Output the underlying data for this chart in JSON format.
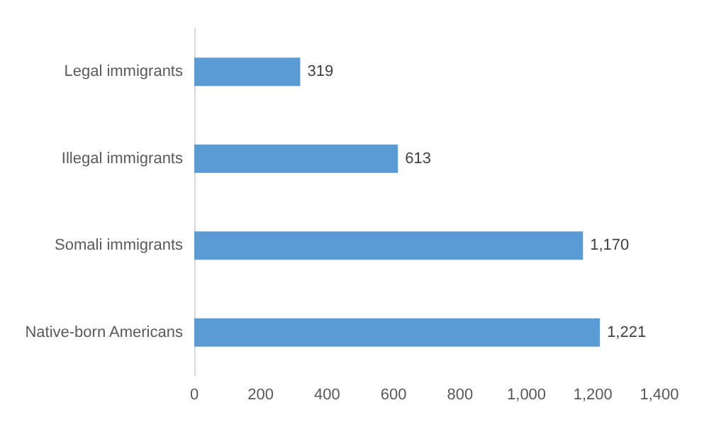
{
  "chart_data": {
    "type": "bar",
    "orientation": "horizontal",
    "categories": [
      "Legal immigrants",
      "Illegal immigrants",
      "Somali immigrants",
      "Native-born Americans"
    ],
    "values": [
      319,
      613,
      1170,
      1221
    ],
    "value_labels": [
      "319",
      "613",
      "1,170",
      "1,221"
    ],
    "color": "#5b9bd5",
    "xlim": [
      0,
      1400
    ],
    "xticks": [
      0,
      200,
      400,
      600,
      800,
      {
        "value": 1000,
        "label": "1,000"
      },
      {
        "value": 1200,
        "label": "1,200"
      },
      {
        "value": 1400,
        "label": "1,400"
      }
    ],
    "grid": false
  }
}
